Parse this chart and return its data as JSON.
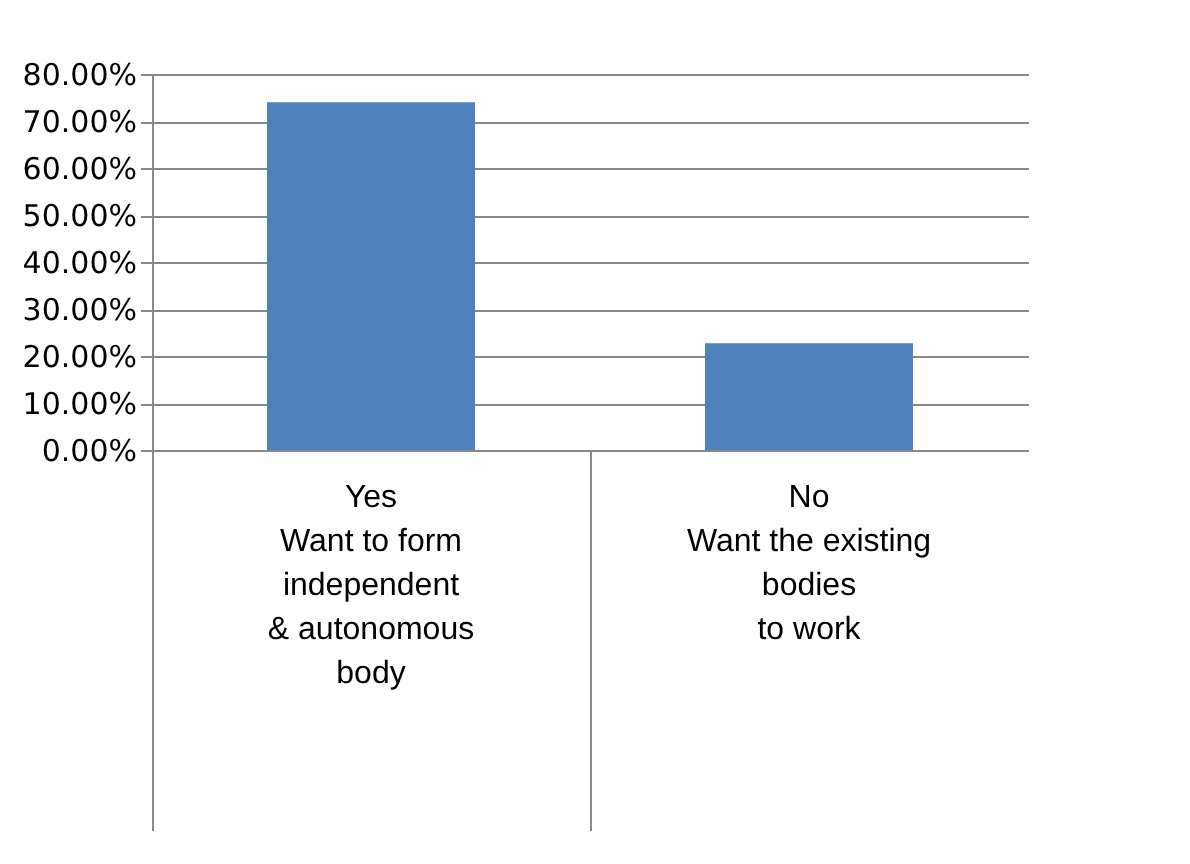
{
  "chart_data": {
    "type": "bar",
    "categories": [
      "Yes\n\nWant to form\nindependent\n& autonomous\nbody",
      "No\n\nWant the existing\nbodies\nto work"
    ],
    "values": [
      74.0,
      22.7
    ],
    "color": "#4f81bd",
    "ylim": [
      0,
      80
    ],
    "yticks": [
      {
        "value": 0,
        "label": "0.00%"
      },
      {
        "value": 10,
        "label": "10.00%"
      },
      {
        "value": 20,
        "label": "20.00%"
      },
      {
        "value": 30,
        "label": "30.00%"
      },
      {
        "value": 40,
        "label": "40.00%"
      },
      {
        "value": 50,
        "label": "50.00%"
      },
      {
        "value": 60,
        "label": "60.00%"
      },
      {
        "value": 70,
        "label": "70.00%"
      },
      {
        "value": 80,
        "label": "80.00%"
      }
    ],
    "grid": "y"
  }
}
